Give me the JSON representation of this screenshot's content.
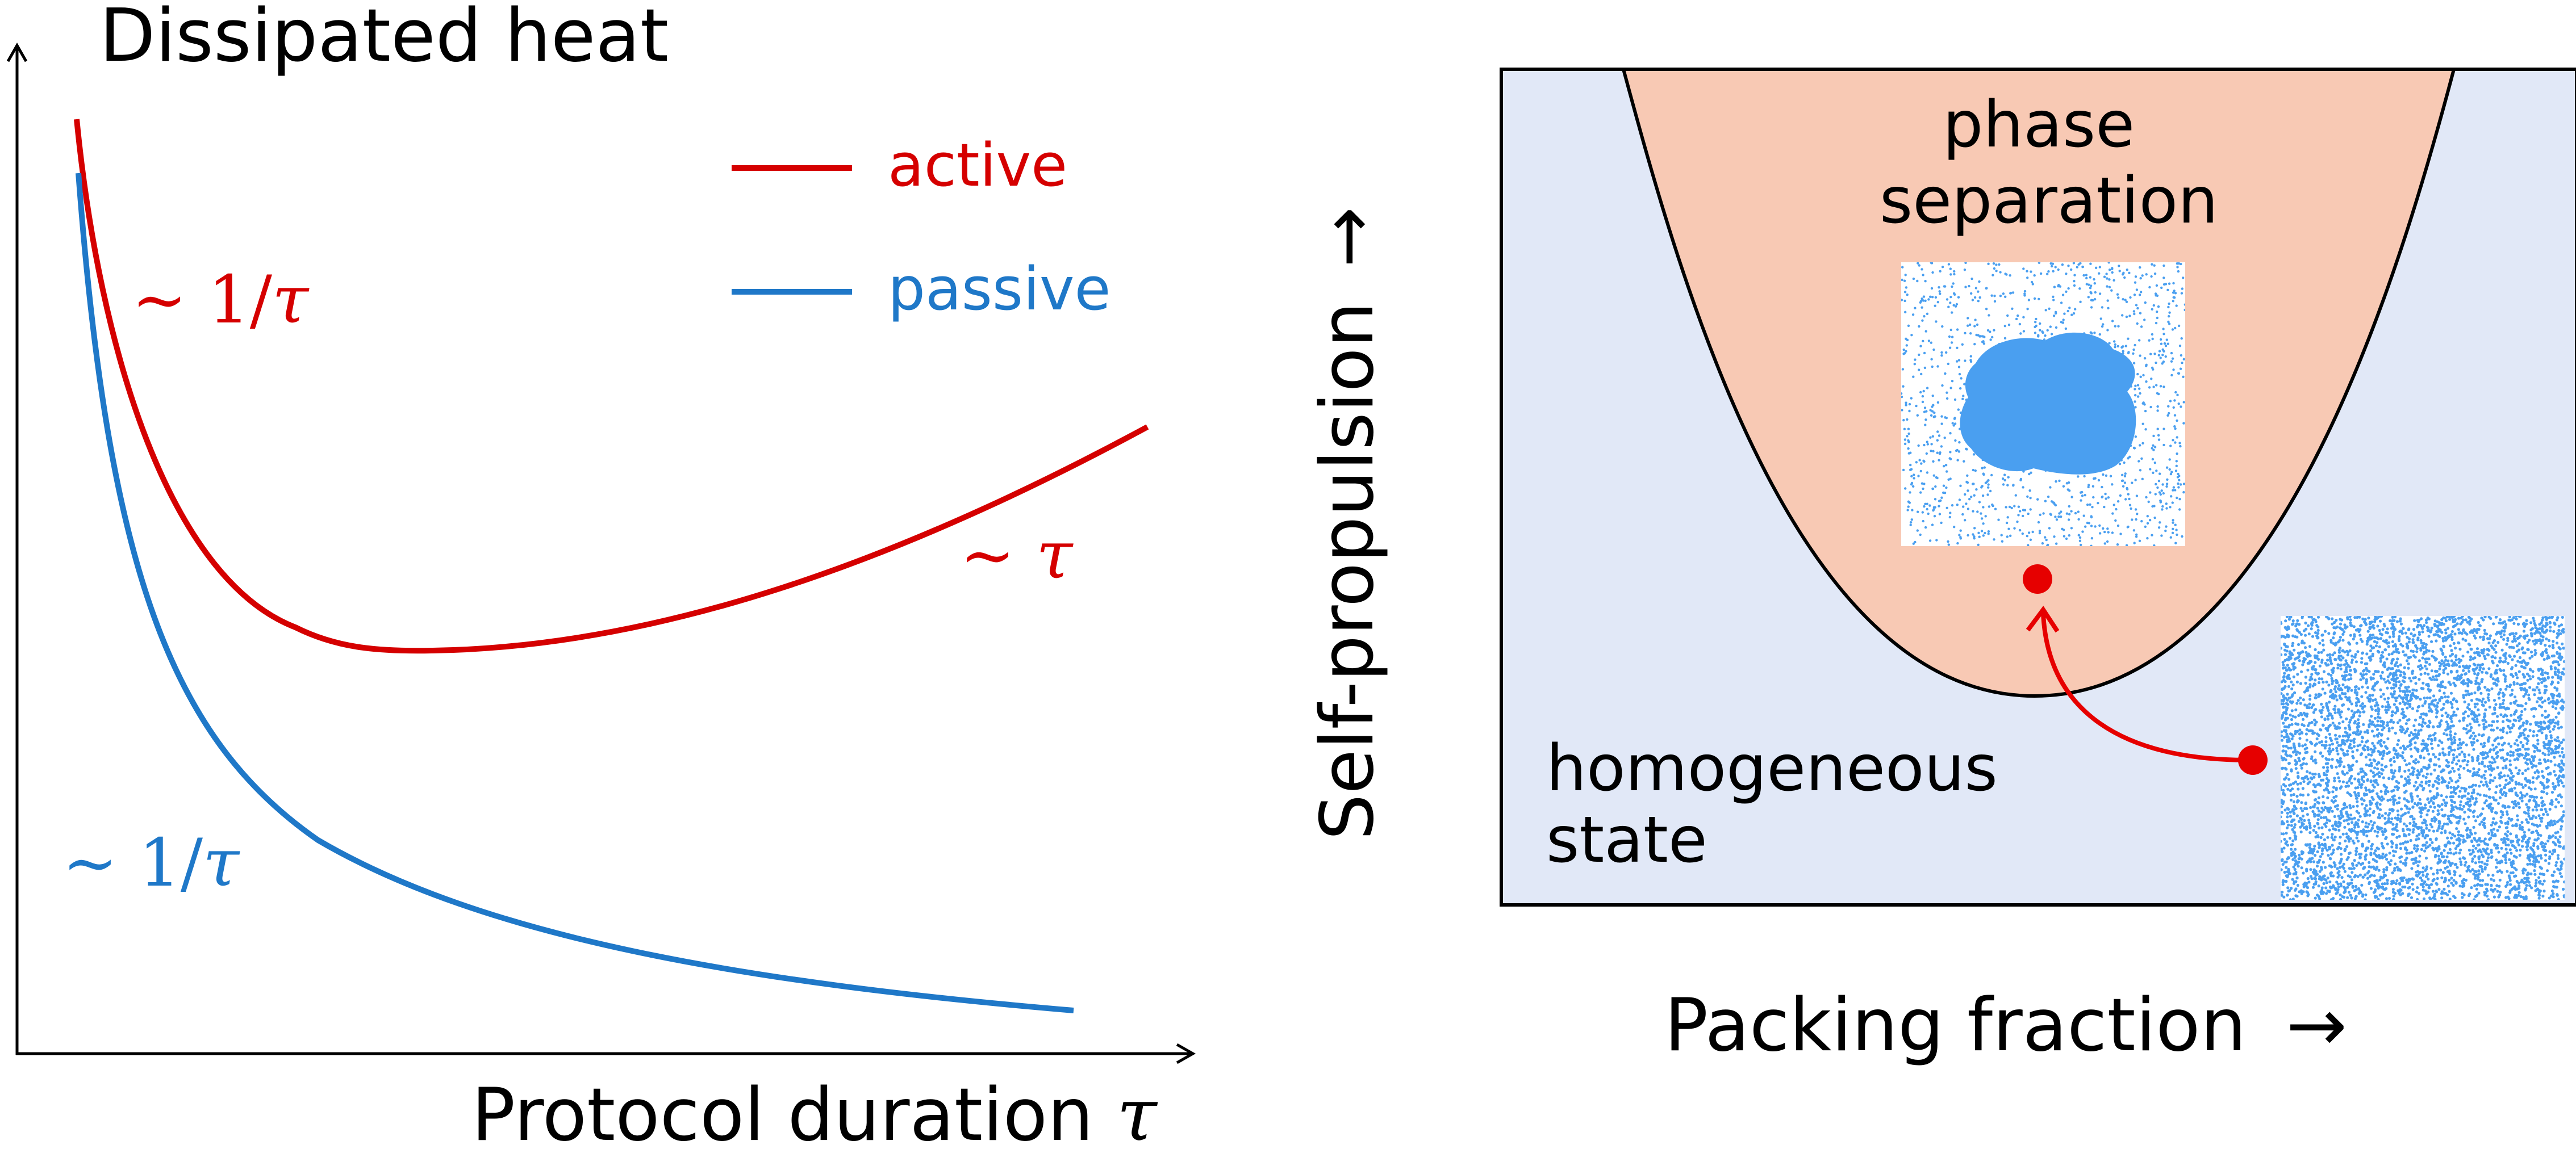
{
  "left_panel": {
    "y_axis_label": "Dissipated heat",
    "x_axis_label_text": "Protocol duration",
    "x_axis_label_symbol": "τ",
    "legend": [
      {
        "label": "active",
        "color": "#d50000"
      },
      {
        "label": "passive",
        "color": "#1f78c8"
      }
    ],
    "annotations": {
      "active_short": {
        "prefix": "∼ 1/",
        "symbol": "τ"
      },
      "active_long": {
        "prefix": "∼ ",
        "symbol": "τ"
      },
      "passive_short": {
        "prefix": "∼ 1/",
        "symbol": "τ"
      }
    }
  },
  "right_panel": {
    "y_axis_label": "Self-propulsion",
    "x_axis_label": "Packing fraction",
    "arrow_symbol": "→",
    "region_phase_separation": [
      "phase",
      "separation"
    ],
    "region_homogeneous": [
      "homogeneous",
      "state"
    ]
  },
  "colors": {
    "active": "#d50000",
    "passive": "#1f78c8",
    "phase_region": "#f8c9b4",
    "homogeneous_region": "#e1e8f7",
    "particles": "#4a9ff0",
    "axis": "#000000"
  }
}
